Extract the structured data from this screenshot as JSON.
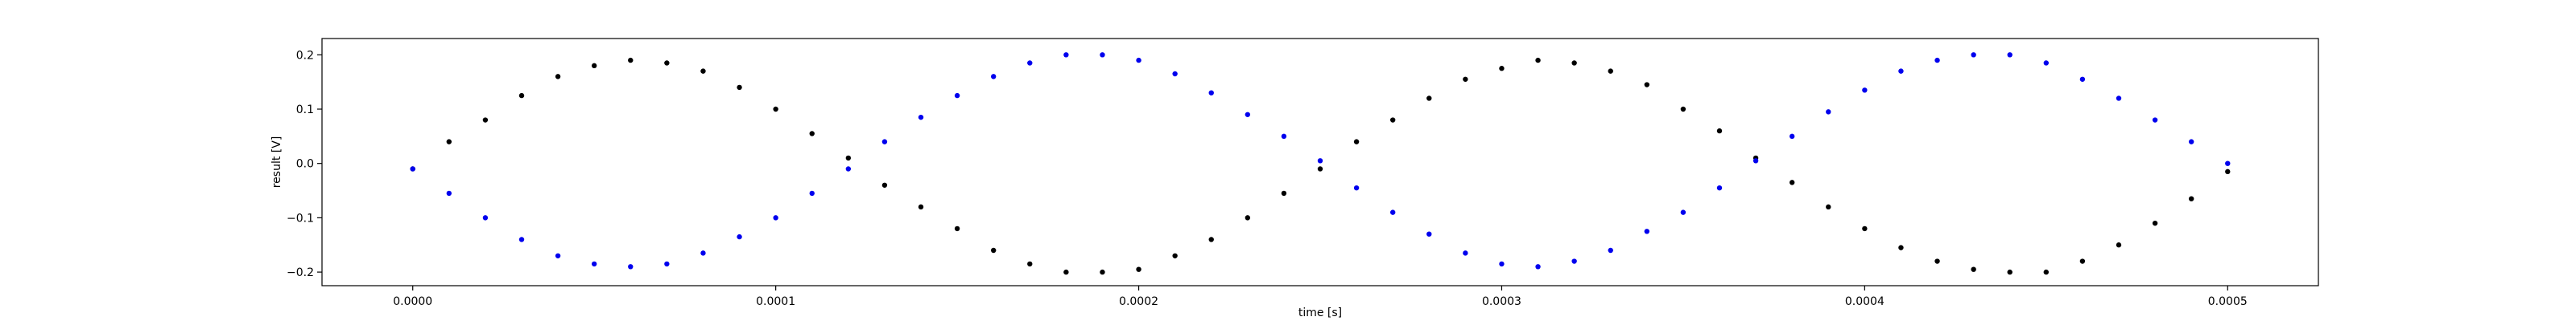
{
  "chart_data": {
    "type": "scatter",
    "title": "",
    "xlabel": "time [s]",
    "ylabel": "result [V]",
    "xlim": [
      -2.5e-05,
      0.000525
    ],
    "ylim": [
      -0.225,
      0.23
    ],
    "grid": false,
    "x_ticks": [
      {
        "value": 0.0,
        "label": "0.0000"
      },
      {
        "value": 0.0001,
        "label": "0.0001"
      },
      {
        "value": 0.0002,
        "label": "0.0002"
      },
      {
        "value": 0.0003,
        "label": "0.0003"
      },
      {
        "value": 0.0004,
        "label": "0.0004"
      },
      {
        "value": 0.0005,
        "label": "0.0005"
      }
    ],
    "y_ticks": [
      {
        "value": -0.2,
        "label": "−0.2"
      },
      {
        "value": -0.1,
        "label": "−0.1"
      },
      {
        "value": 0.0,
        "label": "0.0"
      },
      {
        "value": 0.1,
        "label": "0.1"
      },
      {
        "value": 0.2,
        "label": "0.2"
      }
    ],
    "series": [
      {
        "color": "#000000",
        "x": [
          0.0,
          1e-05,
          2e-05,
          3e-05,
          4e-05,
          5e-05,
          6e-05,
          7e-05,
          8e-05,
          9e-05,
          0.0001,
          0.00011,
          0.00012,
          0.00013,
          0.00014,
          0.00015,
          0.00016,
          0.00017,
          0.00018,
          0.00019,
          0.0002,
          0.00021,
          0.00022,
          0.00023,
          0.00024,
          0.00025,
          0.00026,
          0.00027,
          0.00028,
          0.00029,
          0.0003,
          0.00031,
          0.00032,
          0.00033,
          0.00034,
          0.00035,
          0.00036,
          0.00037,
          0.00038,
          0.00039,
          0.0004,
          0.00041,
          0.00042,
          0.00043,
          0.00044,
          0.00045,
          0.00046,
          0.00047,
          0.00048,
          0.00049,
          0.0005
        ],
        "y": [
          -0.01,
          0.04,
          0.08,
          0.125,
          0.16,
          0.18,
          0.19,
          0.185,
          0.17,
          0.14,
          0.1,
          0.055,
          0.01,
          -0.04,
          -0.08,
          -0.12,
          -0.16,
          -0.185,
          -0.2,
          -0.2,
          -0.195,
          -0.17,
          -0.14,
          -0.1,
          -0.055,
          -0.01,
          0.04,
          0.08,
          0.12,
          0.155,
          0.175,
          0.19,
          0.185,
          0.17,
          0.145,
          0.1,
          0.06,
          0.01,
          -0.035,
          -0.08,
          -0.12,
          -0.155,
          -0.18,
          -0.195,
          -0.2,
          -0.2,
          -0.18,
          -0.15,
          -0.11,
          -0.065,
          -0.015
        ]
      },
      {
        "color": "#0000ee",
        "x": [
          0.0,
          1e-05,
          2e-05,
          3e-05,
          4e-05,
          5e-05,
          6e-05,
          7e-05,
          8e-05,
          9e-05,
          0.0001,
          0.00011,
          0.00012,
          0.00013,
          0.00014,
          0.00015,
          0.00016,
          0.00017,
          0.00018,
          0.00019,
          0.0002,
          0.00021,
          0.00022,
          0.00023,
          0.00024,
          0.00025,
          0.00026,
          0.00027,
          0.00028,
          0.00029,
          0.0003,
          0.00031,
          0.00032,
          0.00033,
          0.00034,
          0.00035,
          0.00036,
          0.00037,
          0.00038,
          0.00039,
          0.0004,
          0.00041,
          0.00042,
          0.00043,
          0.00044,
          0.00045,
          0.00046,
          0.00047,
          0.00048,
          0.00049,
          0.0005
        ],
        "y": [
          -0.01,
          -0.055,
          -0.1,
          -0.14,
          -0.17,
          -0.185,
          -0.19,
          -0.185,
          -0.165,
          -0.135,
          -0.1,
          -0.055,
          -0.01,
          0.04,
          0.085,
          0.125,
          0.16,
          0.185,
          0.2,
          0.2,
          0.19,
          0.165,
          0.13,
          0.09,
          0.05,
          0.005,
          -0.045,
          -0.09,
          -0.13,
          -0.165,
          -0.185,
          -0.19,
          -0.18,
          -0.16,
          -0.125,
          -0.09,
          -0.045,
          0.005,
          0.05,
          0.095,
          0.135,
          0.17,
          0.19,
          0.2,
          0.2,
          0.185,
          0.155,
          0.12,
          0.08,
          0.04,
          0.0
        ]
      }
    ]
  }
}
